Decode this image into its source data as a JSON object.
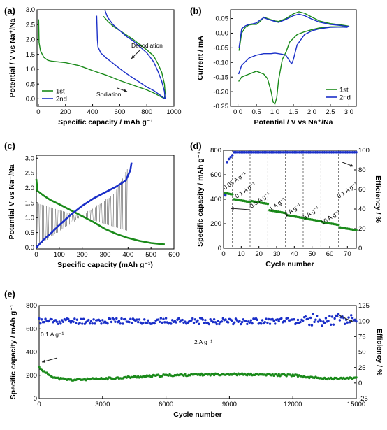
{
  "chart_data": [
    {
      "panel": "(a)",
      "type": "line",
      "xlabel": "Specific capacity / mAh g⁻¹",
      "ylabel": "Potential / V vs Na⁺/Na",
      "xlim": [
        -10,
        1000
      ],
      "ylim": [
        -0.25,
        3.0
      ],
      "xticks": [
        0,
        200,
        400,
        600,
        800,
        1000
      ],
      "yticks": [
        0.0,
        0.5,
        1.0,
        1.5,
        2.0,
        2.5,
        3.0
      ],
      "legend": "bottom-left",
      "annotations": [
        "Desodiation",
        "Sodiation"
      ],
      "series": [
        {
          "name": "1st",
          "color": "#1a8a1a",
          "x": [
            2,
            5,
            15,
            40,
            70,
            100,
            200,
            300,
            400,
            500,
            600,
            700,
            800,
            850,
            900,
            930,
            935,
            930,
            910,
            880,
            850,
            800,
            750,
            700,
            650,
            600,
            550,
            510,
            480
          ],
          "y": [
            2.68,
            1.9,
            1.62,
            1.4,
            1.3,
            1.27,
            1.22,
            1.12,
            0.95,
            0.8,
            0.62,
            0.46,
            0.3,
            0.2,
            0.08,
            0.01,
            0.2,
            0.5,
            0.9,
            1.2,
            1.45,
            1.65,
            1.82,
            2.0,
            2.15,
            2.3,
            2.45,
            2.62,
            2.78
          ]
        },
        {
          "name": "2nd",
          "color": "#1a2fc8",
          "x": [
            430,
            435,
            440,
            460,
            500,
            550,
            600,
            650,
            700,
            750,
            800,
            850,
            900,
            925,
            935,
            930,
            910,
            880,
            850,
            800,
            750,
            700,
            650,
            600,
            550,
            510,
            490
          ],
          "y": [
            2.8,
            2.0,
            1.75,
            1.55,
            1.38,
            1.2,
            1.02,
            0.85,
            0.7,
            0.55,
            0.4,
            0.28,
            0.12,
            0.03,
            0.01,
            0.25,
            0.6,
            0.95,
            1.25,
            1.55,
            1.75,
            1.95,
            2.1,
            2.3,
            2.5,
            2.75,
            3.0
          ]
        }
      ]
    },
    {
      "panel": "(b)",
      "type": "line",
      "xlabel": "Potential / V vs Na⁺/Na",
      "ylabel": "Current / mA",
      "xlim": [
        -0.2,
        3.2
      ],
      "ylim": [
        -0.25,
        0.08
      ],
      "xticks": [
        0.0,
        0.5,
        1.0,
        1.5,
        2.0,
        2.5,
        3.0
      ],
      "yticks": [
        -0.25,
        -0.2,
        -0.15,
        -0.1,
        -0.05,
        0.0,
        0.05
      ],
      "legend": "bottom-right",
      "series": [
        {
          "name": "1st",
          "color": "#1a8a1a",
          "x": [
            0.02,
            0.1,
            0.3,
            0.5,
            0.6,
            0.7,
            0.8,
            0.9,
            0.95,
            1.0,
            1.05,
            1.1,
            1.2,
            1.3,
            1.4,
            1.6,
            1.8,
            2.0,
            2.2,
            2.5,
            2.8,
            2.95,
            3.0,
            2.95,
            2.8,
            2.5,
            2.2,
            2.0,
            1.8,
            1.65,
            1.5,
            1.3,
            1.2,
            1.1,
            1.0,
            0.8,
            0.7,
            0.6,
            0.5,
            0.4,
            0.3,
            0.2,
            0.1,
            0.03
          ],
          "y": [
            -0.165,
            -0.15,
            -0.14,
            -0.13,
            -0.135,
            -0.14,
            -0.155,
            -0.2,
            -0.235,
            -0.243,
            -0.22,
            -0.16,
            -0.09,
            -0.065,
            -0.03,
            -0.005,
            0.005,
            0.012,
            0.018,
            0.022,
            0.022,
            0.022,
            0.024,
            0.025,
            0.028,
            0.033,
            0.042,
            0.055,
            0.068,
            0.073,
            0.066,
            0.05,
            0.045,
            0.04,
            0.042,
            0.05,
            0.055,
            0.04,
            0.03,
            0.03,
            0.028,
            0.02,
            0.0,
            -0.06
          ]
        },
        {
          "name": "2nd",
          "color": "#1a2fc8",
          "x": [
            0.02,
            0.1,
            0.3,
            0.5,
            0.7,
            0.9,
            1.0,
            1.1,
            1.2,
            1.3,
            1.4,
            1.45,
            1.5,
            1.6,
            1.8,
            2.0,
            2.2,
            2.5,
            2.8,
            2.95,
            3.0,
            2.95,
            2.8,
            2.5,
            2.2,
            2.0,
            1.8,
            1.65,
            1.5,
            1.3,
            1.2,
            1.1,
            1.0,
            0.8,
            0.7,
            0.6,
            0.5,
            0.4,
            0.3,
            0.2,
            0.1,
            0.03
          ],
          "y": [
            -0.14,
            -0.11,
            -0.085,
            -0.075,
            -0.07,
            -0.07,
            -0.068,
            -0.07,
            -0.072,
            -0.076,
            -0.095,
            -0.105,
            -0.09,
            -0.04,
            -0.005,
            0.008,
            0.015,
            0.02,
            0.021,
            0.02,
            0.024,
            0.023,
            0.026,
            0.03,
            0.038,
            0.048,
            0.06,
            0.065,
            0.06,
            0.047,
            0.042,
            0.037,
            0.04,
            0.048,
            0.053,
            0.045,
            0.035,
            0.032,
            0.03,
            0.025,
            0.015,
            -0.05
          ]
        }
      ]
    },
    {
      "panel": "(c)",
      "type": "line",
      "xlabel": "Specific capacity (mAh g⁻¹)",
      "ylabel": "Potential   V vs Na⁺/Na",
      "xlim": [
        0,
        600
      ],
      "ylim": [
        -0.05,
        3.1
      ],
      "xticks": [
        0,
        100,
        200,
        300,
        400,
        500,
        600
      ],
      "yticks": [
        0.0,
        0.5,
        1.0,
        1.5,
        2.0,
        2.5,
        3.0
      ],
      "series": [
        {
          "name": "",
          "color": "#1a8a1a",
          "x": [
            0,
            5,
            30,
            60,
            100,
            150,
            200,
            250,
            300,
            350,
            400,
            450,
            500,
            560
          ],
          "y": [
            2.3,
            1.9,
            1.75,
            1.6,
            1.45,
            1.25,
            1.05,
            0.85,
            0.62,
            0.45,
            0.32,
            0.22,
            0.15,
            0.1
          ]
        },
        {
          "name": "",
          "color": "#1a2fc8",
          "x": [
            0,
            30,
            60,
            100,
            150,
            200,
            250,
            300,
            350,
            390,
            410,
            415
          ],
          "y": [
            0.0,
            0.25,
            0.45,
            0.75,
            1.1,
            1.4,
            1.65,
            1.85,
            2.05,
            2.25,
            2.6,
            2.85
          ]
        }
      ]
    },
    {
      "panel": "(d)",
      "type": "scatter",
      "xlabel": "Cycle number",
      "ylabel": "Specific capacity / mAh g⁻¹",
      "y2label": "Efficiency / %",
      "xlim": [
        0,
        75
      ],
      "ylim": [
        0,
        800
      ],
      "y2lim": [
        0,
        100
      ],
      "xticks": [
        0,
        10,
        20,
        30,
        40,
        50,
        60,
        70
      ],
      "yticks": [
        0,
        200,
        400,
        600,
        800
      ],
      "y2ticks": [
        0,
        20,
        40,
        60,
        80,
        100
      ],
      "rate_labels": [
        "0.05 A g⁻¹",
        "0.1 A g⁻¹",
        "0.5 A g⁻¹",
        "1 A g⁻¹",
        "2 A g⁻¹",
        "5 A g⁻¹",
        "10 A g⁻¹",
        "0.1 A g⁻¹"
      ],
      "segments": [
        {
          "from": 1,
          "to": 5,
          "capacity": 450
        },
        {
          "from": 6,
          "to": 15,
          "capacity": 400
        },
        {
          "from": 16,
          "to": 25,
          "capacity": 385
        },
        {
          "from": 26,
          "to": 35,
          "capacity": 310
        },
        {
          "from": 36,
          "to": 45,
          "capacity": 270
        },
        {
          "from": 46,
          "to": 55,
          "capacity": 243
        },
        {
          "from": 56,
          "to": 65,
          "capacity": 213
        },
        {
          "from": 66,
          "to": 75,
          "capacity": 170
        }
      ],
      "segment_labels_order": [
        "0.05 A g⁻¹",
        "0.1 A g⁻¹",
        "0.5 A g⁻¹",
        "1 A g⁻¹",
        "2 A g⁻¹",
        "5 A g⁻¹",
        "10 A g⁻¹",
        "0.1 A g⁻¹"
      ],
      "capacity_color": "#1a8a1a",
      "efficiency_color": "#1a2fc8",
      "efficiency_values_first_cycles": [
        54,
        88,
        91,
        93,
        95
      ],
      "efficiency_plateau": 98
    },
    {
      "panel": "(e)",
      "type": "scatter",
      "xlabel": "Cycle number",
      "ylabel": "Specific capacity / mAh g⁻¹",
      "y2label": "Efficiency / %",
      "xlim": [
        0,
        15000
      ],
      "ylim": [
        0,
        800
      ],
      "y2lim": [
        -25,
        125
      ],
      "xticks": [
        0,
        3000,
        6000,
        9000,
        12000,
        15000
      ],
      "yticks": [
        0,
        200,
        400,
        600,
        800
      ],
      "y2ticks": [
        -25,
        0,
        25,
        50,
        75,
        100,
        125
      ],
      "annotations": [
        "0.1 A g⁻¹",
        "2 A g⁻¹"
      ],
      "capacity_color": "#1a8a1a",
      "efficiency_color": "#1a2fc8",
      "capacity_trend": {
        "x": [
          0,
          300,
          800,
          1500,
          3000,
          6000,
          9000,
          12000,
          13500,
          15000
        ],
        "y": [
          270,
          220,
          175,
          160,
          170,
          200,
          210,
          200,
          170,
          175
        ]
      },
      "efficiency_mean": 100
    }
  ]
}
